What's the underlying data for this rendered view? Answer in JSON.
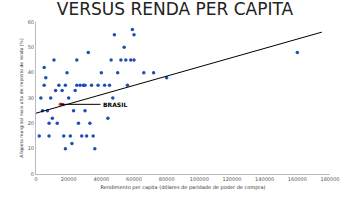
{
  "chart_data": {
    "type": "scatter",
    "title": "VERSUS RENDA PER CAPITA",
    "x_label": "Rendimento per capita (dólares de paridade de poder de compra)",
    "y_label": "Alíquota marginal mais alta do imposto de renda (%)",
    "xlim": [
      0,
      180000
    ],
    "xticks": [
      0,
      20000,
      40000,
      60000,
      80000,
      100000,
      120000,
      140000,
      160000,
      180000
    ],
    "ylim": [
      0,
      60
    ],
    "yticks": [
      0,
      10,
      20,
      30,
      40,
      50,
      60
    ],
    "grid": false,
    "series": [
      {
        "type": "scatter",
        "marker": "circle",
        "color": "#1f4fb4",
        "x": [
          2000,
          3000,
          4000,
          5000,
          5000,
          6000,
          7000,
          8000,
          8000,
          9000,
          10000,
          11000,
          12000,
          13000,
          14000,
          16000,
          17000,
          18000,
          18000,
          19000,
          20000,
          21000,
          22000,
          23000,
          24000,
          25000,
          25000,
          26000,
          27000,
          28000,
          29000,
          30000,
          30000,
          31000,
          32000,
          33000,
          34000,
          35000,
          36000,
          38000,
          40000,
          42000,
          44000,
          45000,
          46000,
          47000,
          48000,
          50000,
          52000,
          54000,
          55000,
          56000,
          58000,
          59000,
          60000,
          60000,
          66000,
          72000,
          80000,
          160000
        ],
        "values": [
          15,
          30,
          25,
          42,
          35,
          38,
          25,
          20,
          15,
          30,
          22,
          45,
          33,
          20,
          35,
          33,
          15,
          10,
          35,
          40,
          30,
          15,
          12,
          25,
          33,
          35,
          45,
          20,
          35,
          15,
          35,
          25,
          35,
          15,
          48,
          20,
          35,
          15,
          10,
          35,
          40,
          35,
          22,
          35,
          45,
          30,
          55,
          40,
          45,
          50,
          45,
          35,
          45,
          57,
          55,
          45,
          40,
          40,
          38,
          48
        ]
      },
      {
        "type": "scatter",
        "marker": "circle",
        "color": "#e02020",
        "x": [
          15000
        ],
        "values": [
          27.5
        ],
        "annotation": "BRASIL"
      },
      {
        "type": "line",
        "line_style": "solid",
        "color": "#000000",
        "x": [
          0,
          175000
        ],
        "values": [
          24,
          56
        ]
      }
    ]
  }
}
